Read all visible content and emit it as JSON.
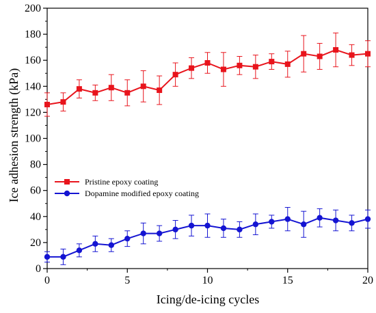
{
  "chart_data": {
    "type": "line",
    "title": "",
    "xlabel": "Icing/de-icing cycles",
    "ylabel": "Ice adhesion strength  (kPa)",
    "xlim": [
      0,
      20
    ],
    "ylim": [
      0,
      200
    ],
    "x_ticks": [
      0,
      5,
      10,
      15,
      20
    ],
    "y_ticks": [
      0,
      20,
      40,
      60,
      80,
      100,
      120,
      140,
      160,
      180,
      200
    ],
    "grid": false,
    "legend_position": "center-left",
    "x": [
      0,
      1,
      2,
      3,
      4,
      5,
      6,
      7,
      8,
      9,
      10,
      11,
      12,
      13,
      14,
      15,
      16,
      17,
      18,
      19,
      20
    ],
    "series": [
      {
        "name": "Pristine epoxy coating",
        "color": "#e8141c",
        "marker": "square",
        "values": [
          126,
          128,
          138,
          135,
          139,
          135,
          140,
          137,
          149,
          154,
          158,
          153,
          156,
          155,
          159,
          157,
          165,
          163,
          168,
          164,
          165
        ],
        "error": [
          9,
          7,
          7,
          6,
          10,
          10,
          12,
          11,
          9,
          8,
          8,
          13,
          7,
          9,
          6,
          10,
          14,
          10,
          13,
          8,
          10
        ]
      },
      {
        "name": "Dopamine modified epoxy coating",
        "color": "#1414d2",
        "marker": "circle",
        "values": [
          9,
          9,
          14,
          19,
          18,
          23,
          27,
          27,
          30,
          33,
          33,
          31,
          30,
          34,
          36,
          38,
          34,
          39,
          37,
          35,
          38
        ],
        "error": [
          4,
          6,
          5,
          6,
          5,
          6,
          8,
          6,
          7,
          8,
          9,
          7,
          6,
          8,
          5,
          9,
          10,
          7,
          8,
          6,
          7
        ]
      }
    ]
  }
}
